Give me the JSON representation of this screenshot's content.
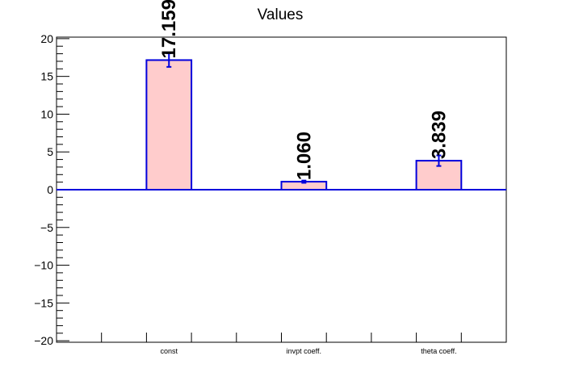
{
  "chart_data": {
    "type": "bar",
    "title": "Values",
    "categories": [
      "const",
      "invpt coeff.",
      "theta coeff."
    ],
    "values": [
      17.159,
      1.06,
      3.839
    ],
    "value_labels": [
      "17.159",
      "1.060",
      "3.839"
    ],
    "errors": [
      0.9,
      0.15,
      0.7
    ],
    "ylim": [
      -20.2,
      20.2
    ],
    "y_ticks": [
      -20,
      -15,
      -10,
      -5,
      0,
      5,
      10,
      15,
      20
    ],
    "y_tick_labels": [
      "−20",
      "−15",
      "−10",
      "−5",
      "0",
      "5",
      "10",
      "15",
      "20"
    ],
    "xlabel": "",
    "ylabel": "",
    "grid": false,
    "bar_fill_color": "#ffcccc",
    "bar_edge_color": "#0000dd",
    "baseline_color": "#0000dd"
  }
}
